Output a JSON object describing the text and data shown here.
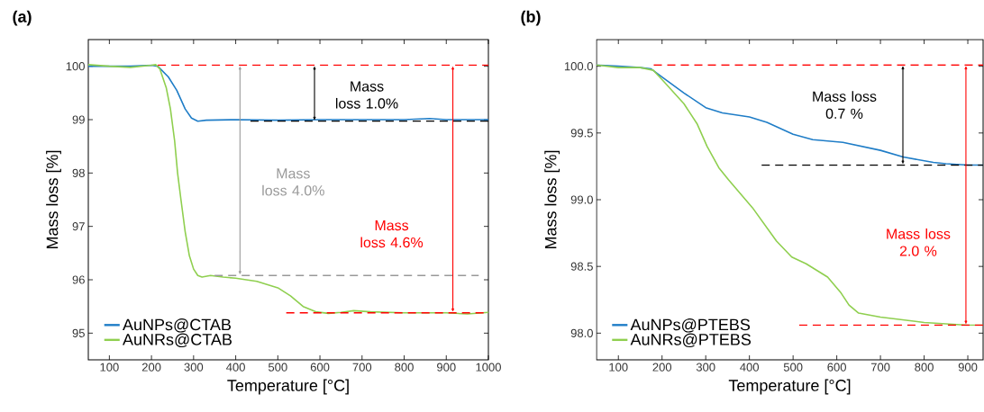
{
  "chart_data": [
    {
      "type": "line",
      "title": "(a)",
      "xlabel": "Temperature [°C]",
      "ylabel": "Mass loss [%]",
      "xlim": [
        50,
        1000
      ],
      "ylim": [
        94.5,
        100.5
      ],
      "xticks": [
        100,
        200,
        300,
        400,
        500,
        600,
        700,
        800,
        900,
        1000
      ],
      "yticks": [
        95,
        96,
        97,
        98,
        99,
        100
      ],
      "legend": "bottom left",
      "grid": false,
      "marker": "none",
      "series": [
        {
          "name": "AuNPs@CTAB",
          "color": "#1f7dc7",
          "x": [
            50,
            100,
            150,
            200,
            215,
            240,
            260,
            280,
            295,
            310,
            330,
            400,
            500,
            600,
            700,
            800,
            860,
            900,
            1000
          ],
          "values": [
            100.0,
            100.0,
            100.0,
            100.02,
            100.0,
            99.8,
            99.55,
            99.2,
            99.03,
            98.97,
            98.99,
            99.0,
            98.99,
            99.0,
            99.0,
            99.0,
            99.02,
            99.0,
            99.0
          ]
        },
        {
          "name": "AuNRs@CTAB",
          "color": "#8fcf4f",
          "x": [
            50,
            100,
            150,
            200,
            210,
            220,
            235,
            245,
            255,
            262,
            270,
            280,
            290,
            300,
            310,
            320,
            340,
            370,
            400,
            450,
            500,
            530,
            560,
            590,
            620,
            650,
            680,
            720,
            800,
            900,
            950,
            1000
          ],
          "values": [
            100.03,
            100.0,
            99.98,
            100.02,
            100.03,
            99.95,
            99.6,
            99.2,
            98.6,
            98.0,
            97.5,
            96.9,
            96.45,
            96.2,
            96.08,
            96.05,
            96.08,
            96.05,
            96.03,
            95.97,
            95.85,
            95.7,
            95.5,
            95.4,
            95.37,
            95.39,
            95.42,
            95.4,
            95.38,
            95.38,
            95.36,
            95.39
          ]
        },
        {
          "type": "line",
          "color": "#ff0000",
          "line_style": "dashed",
          "x": [
            215,
            1000
          ],
          "values": [
            100.02,
            100.02
          ]
        },
        {
          "type": "line",
          "color": "#000000",
          "line_style": "dashed",
          "x": [
            435,
            1000
          ],
          "values": [
            98.97,
            98.97
          ]
        },
        {
          "type": "line",
          "color": "#999999",
          "line_style": "dashed",
          "x": [
            350,
            977
          ],
          "values": [
            96.08,
            96.08
          ]
        },
        {
          "type": "line",
          "color": "#ff0000",
          "line_style": "dashed",
          "x": [
            520,
            1000
          ],
          "values": [
            95.38,
            95.38
          ]
        }
      ],
      "annotations": [
        "Mass loss 1.0%",
        "Mass loss 4.0%",
        "Mass loss 4.6%"
      ]
    },
    {
      "type": "line",
      "title": "(b)",
      "xlabel": "Temperature [°C]",
      "ylabel": "Mass loss [%]",
      "xlim": [
        50,
        935
      ],
      "ylim": [
        97.8,
        100.2
      ],
      "xticks": [
        100,
        200,
        300,
        400,
        500,
        600,
        700,
        800,
        900
      ],
      "yticks": [
        {
          "value": 98,
          "label": "98.0"
        },
        98.5,
        {
          "value": 99,
          "label": "99.0"
        },
        99.5,
        {
          "value": 100,
          "label": "100.0"
        }
      ],
      "legend": "bottom left",
      "grid": false,
      "marker": "none",
      "series": [
        {
          "name": "AuNPs@PTEBS",
          "color": "#1f7dc7",
          "x": [
            50,
            100,
            150,
            175,
            200,
            250,
            300,
            338,
            400,
            440,
            500,
            545,
            614,
            700,
            752,
            821,
            850,
            900,
            935
          ],
          "values": [
            100.01,
            100.0,
            99.99,
            99.98,
            99.92,
            99.8,
            99.69,
            99.65,
            99.62,
            99.58,
            99.49,
            99.45,
            99.43,
            99.37,
            99.32,
            99.28,
            99.27,
            99.26,
            99.26
          ]
        },
        {
          "name": "AuNRs@PTEBS",
          "color": "#8fcf4f",
          "x": [
            50,
            100,
            150,
            180,
            200,
            250,
            280,
            303,
            330,
            352,
            407,
            462,
            497,
            530,
            579,
            610,
            628,
            650,
            700,
            800,
            900,
            935
          ],
          "values": [
            100.01,
            99.99,
            99.99,
            99.97,
            99.9,
            99.72,
            99.57,
            99.4,
            99.24,
            99.15,
            98.94,
            98.69,
            98.57,
            98.52,
            98.42,
            98.3,
            98.21,
            98.15,
            98.12,
            98.08,
            98.06,
            98.06
          ]
        },
        {
          "type": "line",
          "color": "#ff0000",
          "line_style": "dashed",
          "x": [
            181,
            935
          ],
          "values": [
            100.01,
            100.01
          ]
        },
        {
          "type": "line",
          "color": "#000000",
          "line_style": "dashed",
          "x": [
            428,
            935
          ],
          "values": [
            99.26,
            99.26
          ]
        },
        {
          "type": "line",
          "color": "#ff0000",
          "line_style": "dashed",
          "x": [
            514,
            935
          ],
          "values": [
            98.06,
            98.06
          ]
        }
      ],
      "annotations": [
        "Mass loss 0.7 %",
        "Mass loss 2.0 %"
      ]
    }
  ]
}
